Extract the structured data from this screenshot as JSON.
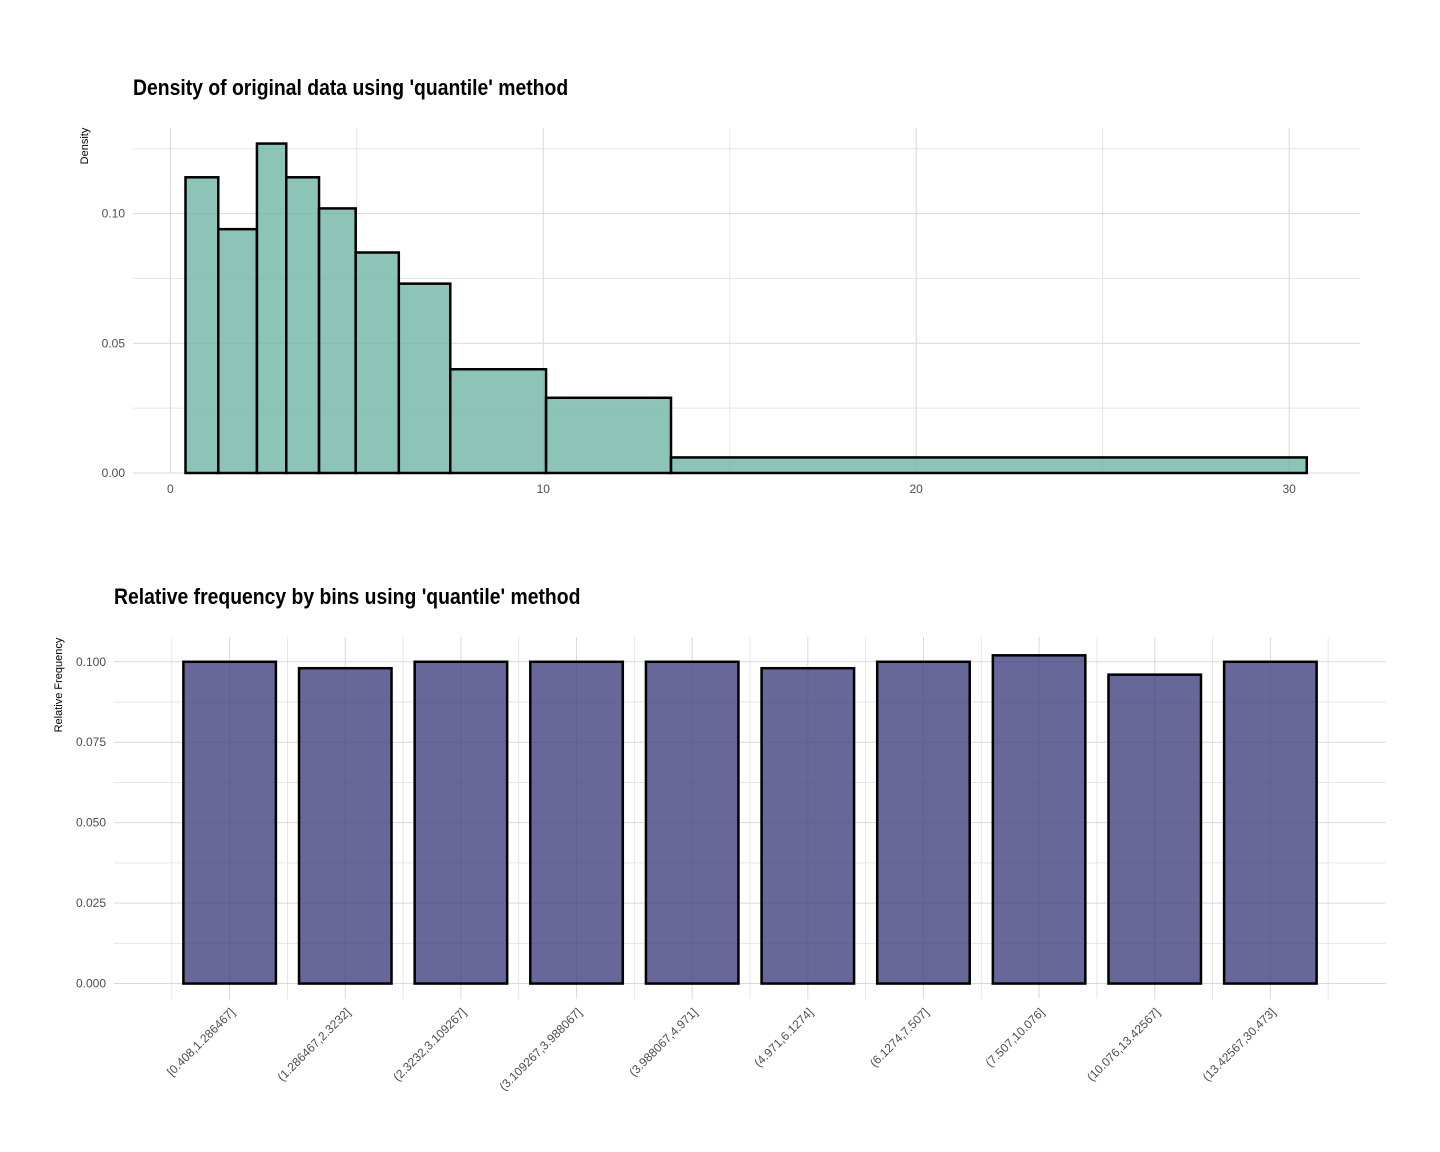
{
  "chart_data": [
    {
      "type": "histogram",
      "title": "Density of original data using 'quantile' method",
      "xlabel": "",
      "ylabel": "Density",
      "xlim": [
        -1.0,
        31.9
      ],
      "ylim": [
        0,
        0.133
      ],
      "x_ticks": [
        0,
        10,
        20,
        30
      ],
      "y_ticks": [
        0.0,
        0.05,
        0.1
      ],
      "x_tick_labels": [
        "0",
        "10",
        "20",
        "30"
      ],
      "y_tick_labels": [
        "0.00",
        "0.05",
        "0.10"
      ],
      "grid": true,
      "colors": {
        "fill": "#66b2a0",
        "fill_opacity": 0.75,
        "stroke": "#000000"
      },
      "bins": [
        {
          "x0": 0.408,
          "x1": 1.286467,
          "density": 0.114
        },
        {
          "x0": 1.286467,
          "x1": 2.3232,
          "density": 0.094
        },
        {
          "x0": 2.3232,
          "x1": 3.109267,
          "density": 0.127
        },
        {
          "x0": 3.109267,
          "x1": 3.988067,
          "density": 0.114
        },
        {
          "x0": 3.988067,
          "x1": 4.971,
          "density": 0.102
        },
        {
          "x0": 4.971,
          "x1": 6.1274,
          "density": 0.085
        },
        {
          "x0": 6.1274,
          "x1": 7.507,
          "density": 0.073
        },
        {
          "x0": 7.507,
          "x1": 10.076,
          "density": 0.04
        },
        {
          "x0": 10.076,
          "x1": 13.42567,
          "density": 0.029
        },
        {
          "x0": 13.42567,
          "x1": 30.473,
          "density": 0.006
        }
      ]
    },
    {
      "type": "bar",
      "title": "Relative frequency by bins using 'quantile' method",
      "xlabel": "",
      "ylabel": "Relative Frequency",
      "ylim": [
        -0.0048,
        0.1077
      ],
      "y_ticks": [
        0.0,
        0.025,
        0.05,
        0.075,
        0.1
      ],
      "y_tick_labels": [
        "0.000",
        "0.025",
        "0.050",
        "0.075",
        "0.100"
      ],
      "grid": true,
      "colors": {
        "fill": "#3c3c7c",
        "fill_opacity": 0.78,
        "stroke": "#000000"
      },
      "categories": [
        "[0.408,1.286467]",
        "(1.286467,2.3232]",
        "(2.3232,3.109267]",
        "(3.109267,3.988067]",
        "(3.988067,4.971]",
        "(4.971,6.1274]",
        "(6.1274,7.507]",
        "(7.507,10.076]",
        "(10.076,13.42567]",
        "(13.42567,30.473]"
      ],
      "values": [
        0.1,
        0.098,
        0.1,
        0.1,
        0.1,
        0.098,
        0.1,
        0.102,
        0.096,
        0.1
      ]
    }
  ]
}
